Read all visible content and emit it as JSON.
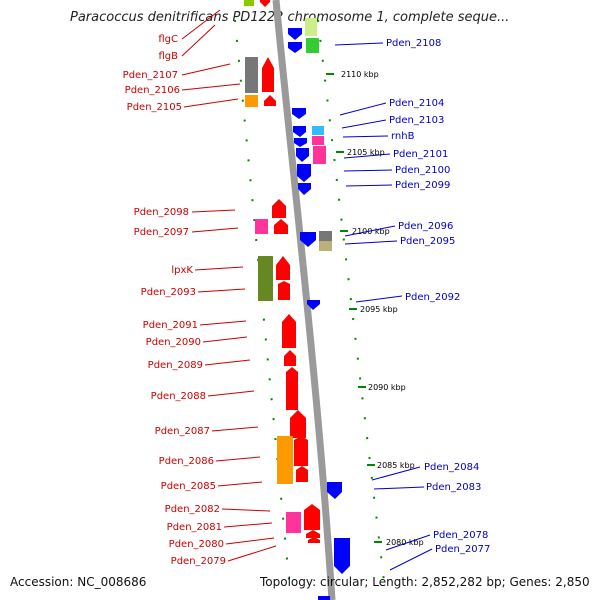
{
  "title": "Paracoccus denitrificans PD1222 chromosome 1, complete seque...",
  "footer": {
    "accession": "Accession: NC_008686",
    "topology": "Topology: circular; Length: 2,852,282 bp; Genes: 2,850"
  },
  "colors": {
    "forward": "#ff0000",
    "reverse": "#0000ff",
    "backbone": "#999999",
    "tick": "#008800",
    "left_label": "#cc0000",
    "right_label": "#0000cc"
  },
  "scale_labels": [
    "2110 kbp",
    "2105 kbp",
    "2100 kbp",
    "2095 kbp",
    "2090 kbp",
    "2085 kbp",
    "2080 kbp"
  ],
  "left_genes": [
    "flgC",
    "flgB",
    "Pden_2107",
    "Pden_2106",
    "Pden_2105",
    "Pden_2098",
    "Pden_2097",
    "lpxK",
    "Pden_2093",
    "Pden_2091",
    "Pden_2090",
    "Pden_2089",
    "Pden_2088",
    "Pden_2087",
    "Pden_2086",
    "Pden_2085",
    "Pden_2082",
    "Pden_2081",
    "Pden_2080",
    "Pden_2079"
  ],
  "right_genes": [
    "Pden_2108",
    "Pden_2104",
    "Pden_2103",
    "rnhB",
    "Pden_2101",
    "Pden_2100",
    "Pden_2099",
    "Pden_2096",
    "Pden_2095",
    "Pden_2092",
    "Pden_2084",
    "Pden_2083",
    "Pden_2078",
    "Pden_2077"
  ]
}
